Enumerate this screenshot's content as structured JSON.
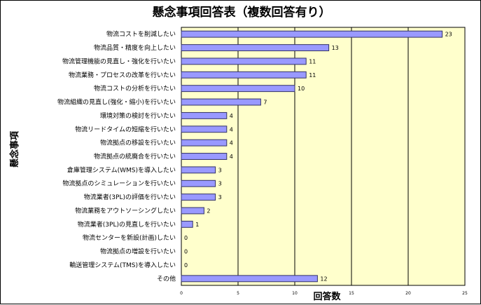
{
  "chart_data": {
    "type": "bar",
    "orientation": "horizontal",
    "title": "懸念事項回答表（複数回答有り）",
    "xlabel": "回答数",
    "ylabel": "懸念事項",
    "xlim": [
      0,
      25
    ],
    "x_ticks": [
      "0",
      "5",
      "10",
      "15",
      "20",
      "25"
    ],
    "grid": "vertical major lines",
    "legend": "none",
    "colors": {
      "plot_background": "#ffffcc",
      "bar_fill": "#9999ff",
      "bar_stroke": "#333366",
      "grid": "#000000"
    },
    "categories": [
      "物流コストを削減したい",
      "物流品質・精度を向上したい",
      "物流管理機能の見直し・強化を行いたい",
      "物流業務・プロセスの改革を行いたい",
      "物流コストの分析を行いたい",
      "物流組織の見直し(強化・縮小)を行いたい",
      "環境対策の検討を行いたい",
      "物流リードタイムの短縮を行いたい",
      "物流拠点の移設を行いたい",
      "物流拠点の統廃合を行いたい",
      "倉庫管理システム(WMS)を導入したい",
      "物流拠点のシミュレーションを行いたい",
      "物流業者(3PL)の評価を行いたい",
      "物流業務をアウトソーシングしたい",
      "物流業者(3PL)の見直しを行いたい",
      "物流センターを新設(計画)したい",
      "物流拠点の増設を行いたい",
      "輸送管理システム(TMS)を導入したい",
      "その他"
    ],
    "values": [
      23,
      13,
      11,
      11,
      10,
      7,
      4,
      4,
      4,
      4,
      3,
      3,
      3,
      2,
      1,
      0,
      0,
      0,
      12
    ]
  }
}
